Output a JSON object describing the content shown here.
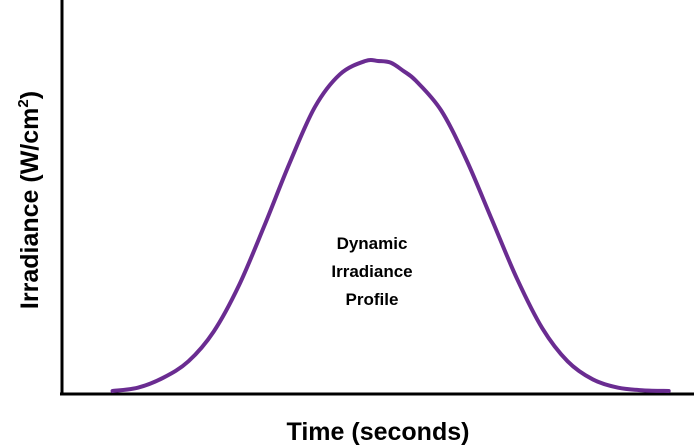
{
  "chart_data": {
    "type": "line",
    "title": "",
    "xlabel": "Time (seconds)",
    "ylabel_main": "Irradiance (W/cm",
    "ylabel_sup": "2",
    "ylabel_close": ")",
    "annotation_lines": [
      "Dynamic",
      "Irradiance",
      "Profile"
    ],
    "grid": false,
    "legend": "none",
    "ticks": false,
    "xlim": [
      0,
      100
    ],
    "ylim": [
      0,
      100
    ],
    "series": [
      {
        "color": "#6a2c91",
        "x": [
          8,
          12,
          16,
          20,
          24,
          28,
          32,
          36,
          40,
          44,
          48,
          50,
          52,
          54,
          56,
          60,
          64,
          68,
          72,
          76,
          80,
          84,
          88,
          92,
          96
        ],
        "y": [
          0,
          1,
          4,
          9,
          18,
          32,
          50,
          69,
          86,
          96,
          100,
          100,
          99.5,
          97,
          94,
          85,
          70,
          52,
          34,
          19,
          9,
          3.5,
          1,
          0.2,
          0
        ]
      }
    ]
  }
}
